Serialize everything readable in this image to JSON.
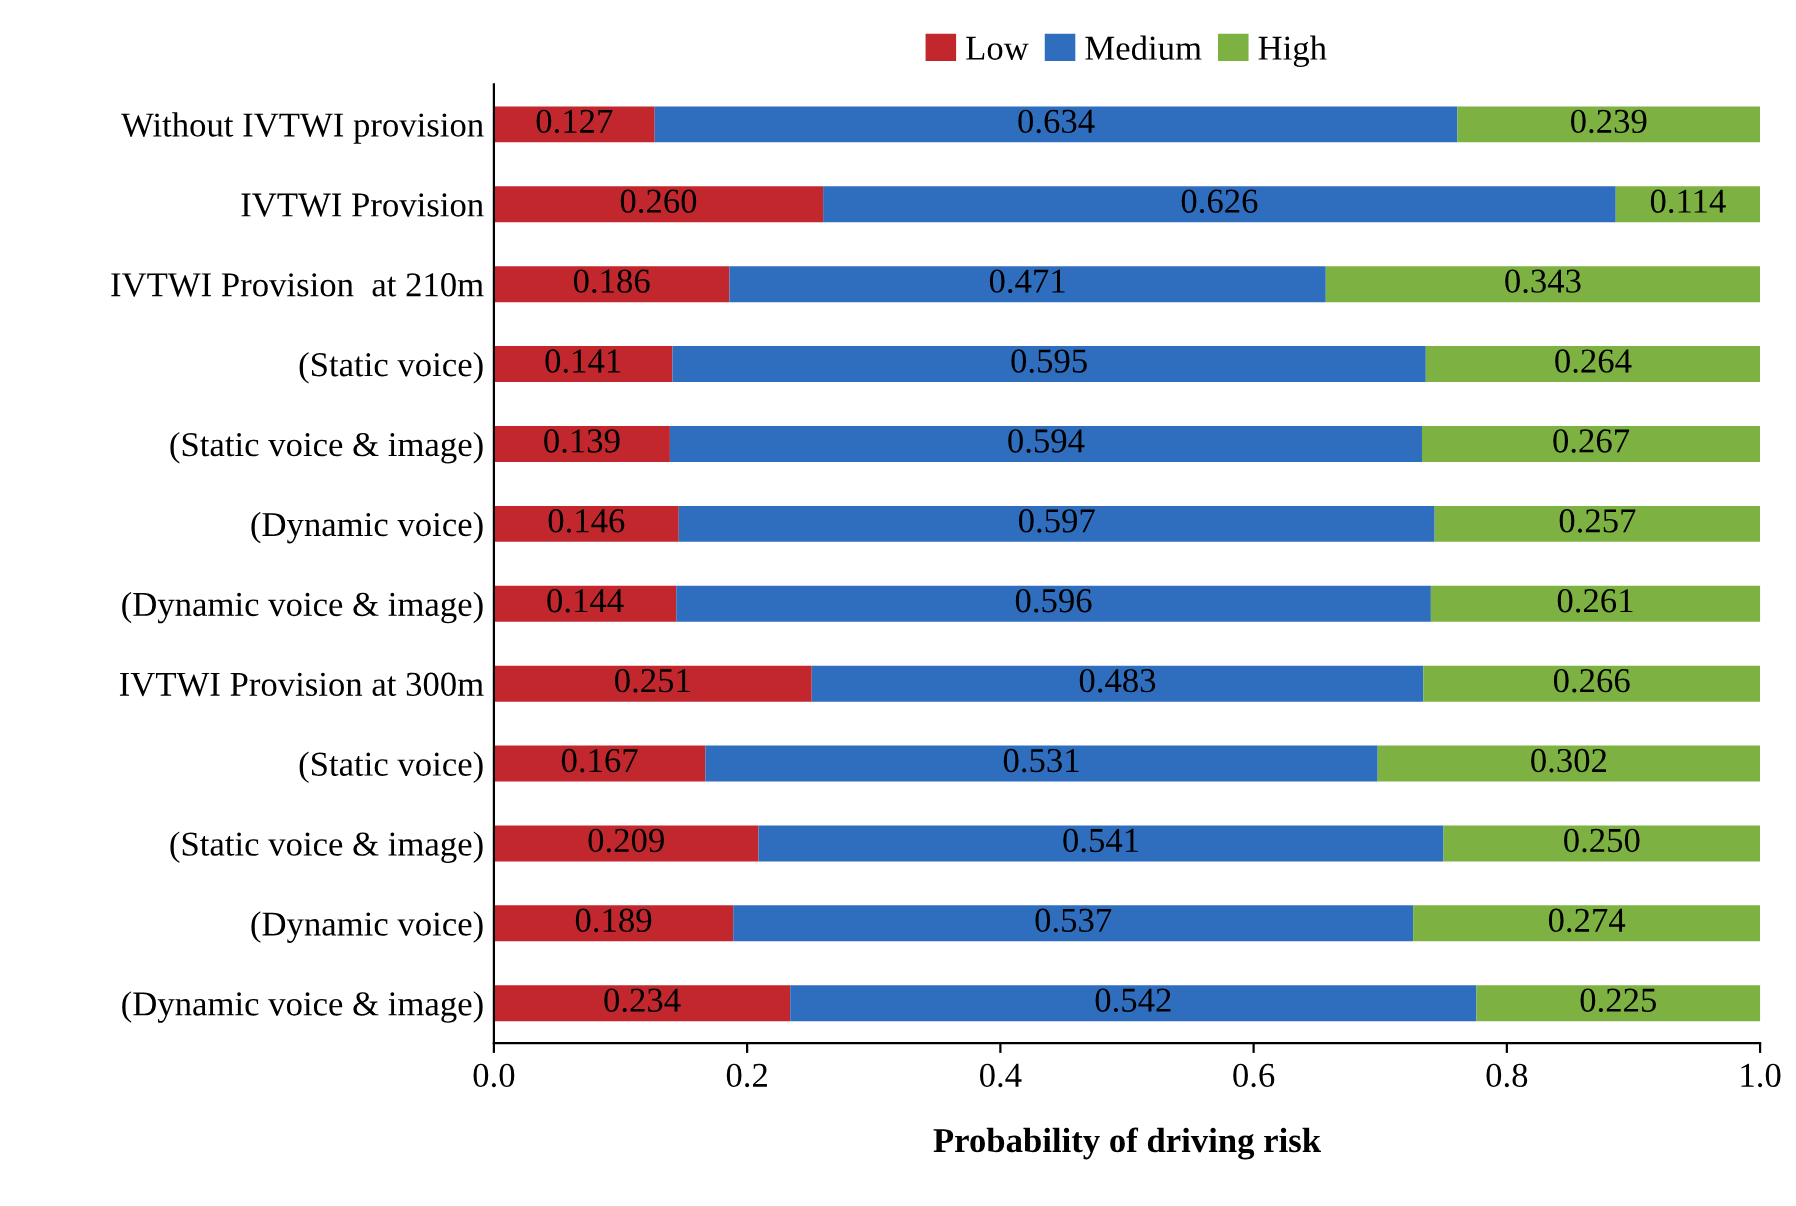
{
  "chart_data": {
    "type": "bar",
    "orientation": "horizontal",
    "stacked": true,
    "xlabel": "Probability of driving risk",
    "categories": [
      "Without IVTWI provision",
      "IVTWI Provision",
      "IVTWI Provision  at 210m",
      "(Static voice)",
      "(Static voice & image)",
      "(Dynamic voice)",
      "(Dynamic voice & image)",
      "IVTWI Provision at 300m",
      "(Static voice)",
      "(Static voice & image)",
      "(Dynamic voice)",
      "(Dynamic voice & image)"
    ],
    "series": [
      {
        "name": "Low",
        "color": "#c1272d",
        "values": [
          0.127,
          0.26,
          0.186,
          0.141,
          0.139,
          0.146,
          0.144,
          0.251,
          0.167,
          0.209,
          0.189,
          0.234
        ],
        "value_labels": [
          "0.127",
          "0.260",
          "0.186",
          "0.141",
          "0.139",
          "0.146",
          "0.144",
          "0.251",
          "0.167",
          "0.209",
          "0.189",
          "0.234"
        ]
      },
      {
        "name": "Medium",
        "color": "#2f6ebf",
        "values": [
          0.634,
          0.626,
          0.471,
          0.595,
          0.594,
          0.597,
          0.596,
          0.483,
          0.531,
          0.541,
          0.537,
          0.542
        ],
        "value_labels": [
          "0.634",
          "0.626",
          "0.471",
          "0.595",
          "0.594",
          "0.597",
          "0.596",
          "0.483",
          "0.531",
          "0.541",
          "0.537",
          "0.542"
        ]
      },
      {
        "name": "High",
        "color": "#7db242",
        "values": [
          0.239,
          0.114,
          0.343,
          0.264,
          0.267,
          0.257,
          0.261,
          0.266,
          0.302,
          0.25,
          0.274,
          0.225
        ],
        "value_labels": [
          "0.239",
          "0.114",
          "0.343",
          "0.264",
          "0.267",
          "0.257",
          "0.261",
          "0.266",
          "0.302",
          "0.250",
          "0.274",
          "0.225"
        ]
      }
    ],
    "xlim": [
      0,
      1
    ],
    "xticks": [
      {
        "value": 0,
        "label": "0.0"
      },
      0.2,
      0.4,
      0.6,
      0.8,
      {
        "value": 1,
        "label": "1.0"
      }
    ],
    "grid": false,
    "legend": "top"
  }
}
